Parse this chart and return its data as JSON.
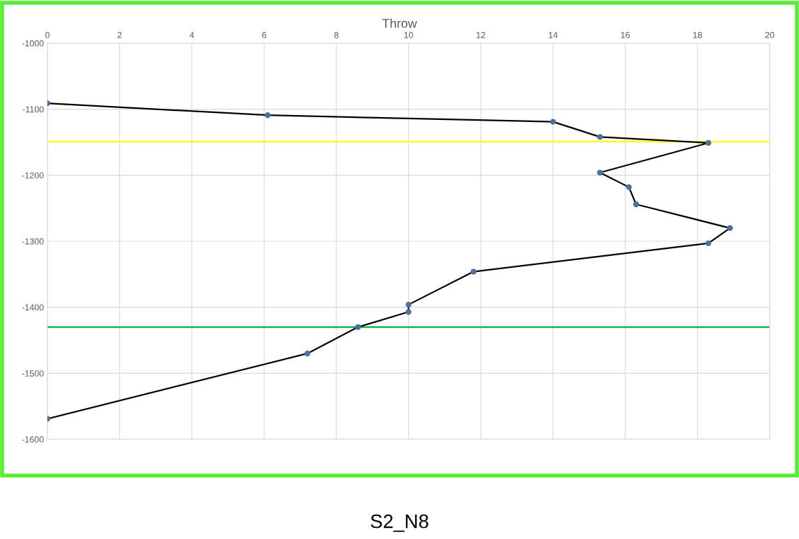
{
  "chart_data": {
    "type": "line",
    "title": "Throw",
    "series": [
      {
        "color": "#000000",
        "x": [
          0,
          6.1,
          14,
          15.3,
          18.3,
          15.3,
          16.1,
          16.3,
          18.9,
          18.3,
          11.8,
          10,
          10,
          8.6,
          7.2,
          0
        ],
        "values": [
          -1091,
          -1109,
          -1119,
          -1142,
          -1151,
          -1196,
          -1218,
          -1244,
          -1280,
          -1303,
          -1346,
          -1396,
          -1407,
          -1430,
          -1470,
          -1569
        ]
      }
    ],
    "xlim": [
      0,
      20
    ],
    "xticks": [
      0,
      2,
      4,
      6,
      8,
      10,
      12,
      14,
      16,
      18,
      20
    ],
    "ylim": [
      -1600,
      -1000
    ],
    "yticks": [
      -1600,
      -1500,
      -1400,
      -1300,
      -1200,
      -1100,
      -1000
    ],
    "ref_lines": [
      {
        "axis": "y",
        "value": -1149,
        "color": "#ffff00"
      },
      {
        "axis": "y",
        "value": -1430,
        "color": "#00b050"
      }
    ],
    "annotations": [
      "S2_N8"
    ],
    "grid": true,
    "marker": "circle",
    "line_style": "solid",
    "legend": false
  }
}
